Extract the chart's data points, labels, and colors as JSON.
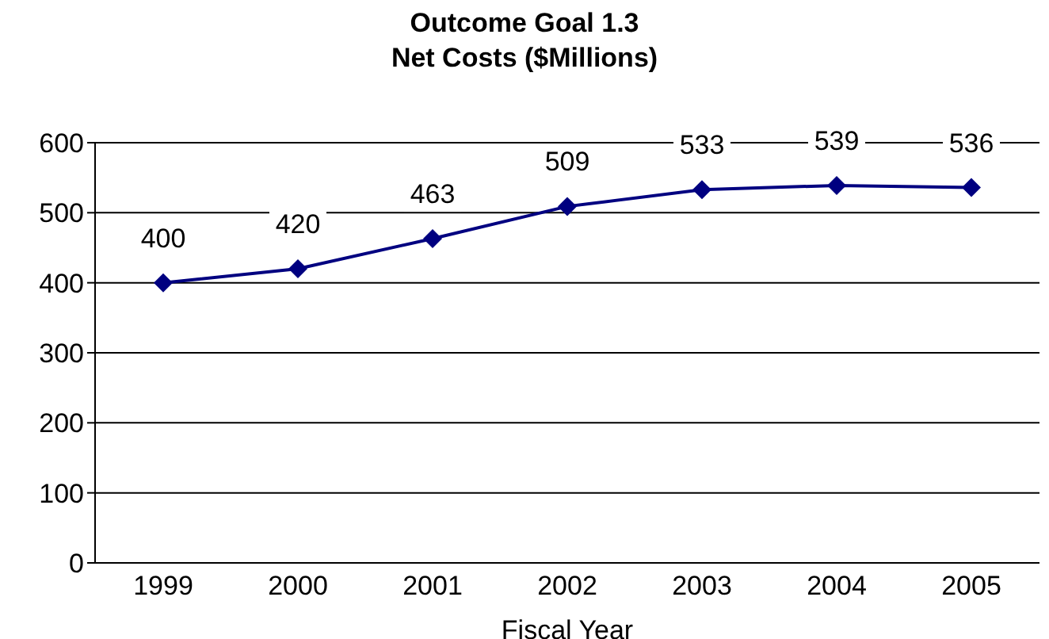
{
  "chart_data": {
    "type": "line",
    "title": "Outcome Goal 1.3\nNet Costs ($Millions)",
    "xlabel": "Fiscal Year",
    "categories": [
      "1999",
      "2000",
      "2001",
      "2002",
      "2003",
      "2004",
      "2005"
    ],
    "series": [
      {
        "color": "#000080",
        "values": [
          400,
          420,
          463,
          509,
          533,
          539,
          536
        ]
      }
    ],
    "ylim": [
      0,
      600
    ],
    "yticks": [
      0,
      100,
      200,
      300,
      400,
      500,
      600
    ],
    "grid": "y",
    "marker": "diamond",
    "line_style": "solid",
    "data_labels": true
  }
}
